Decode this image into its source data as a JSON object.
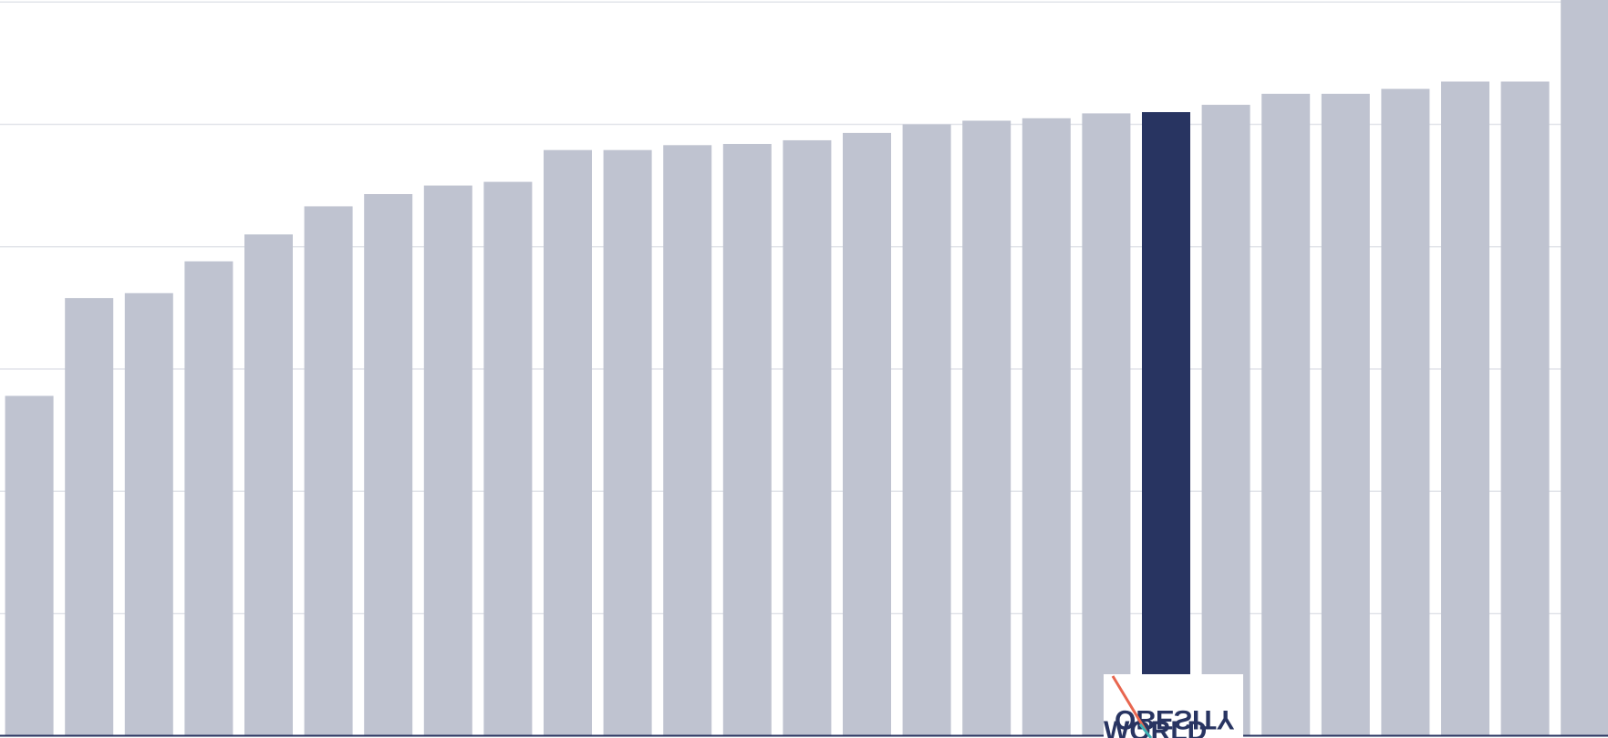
{
  "chart_data": {
    "type": "bar",
    "values": [
      27.8,
      35.8,
      36.2,
      38.8,
      41.0,
      43.3,
      44.3,
      45.0,
      45.3,
      47.9,
      47.9,
      48.3,
      48.4,
      48.7,
      49.3,
      50.0,
      50.3,
      50.5,
      50.9,
      51.0,
      51.6,
      52.5,
      52.5,
      52.9,
      53.5,
      53.5,
      62
    ],
    "colors": [
      "#bfc3d0",
      "#bfc3d0",
      "#bfc3d0",
      "#bfc3d0",
      "#bfc3d0",
      "#bfc3d0",
      "#bfc3d0",
      "#bfc3d0",
      "#bfc3d0",
      "#bfc3d0",
      "#bfc3d0",
      "#bfc3d0",
      "#bfc3d0",
      "#bfc3d0",
      "#bfc3d0",
      "#bfc3d0",
      "#bfc3d0",
      "#bfc3d0",
      "#bfc3d0",
      "#283461",
      "#bfc3d0",
      "#bfc3d0",
      "#bfc3d0",
      "#bfc3d0",
      "#bfc3d0",
      "#bfc3d0",
      "#bfc3d0"
    ],
    "ylim": [
      0,
      60
    ],
    "yticks": [
      0,
      10,
      20,
      30,
      40,
      50,
      60
    ],
    "grid": true
  },
  "logo": {
    "line1": "OBESITY",
    "line2": "WORLD"
  }
}
